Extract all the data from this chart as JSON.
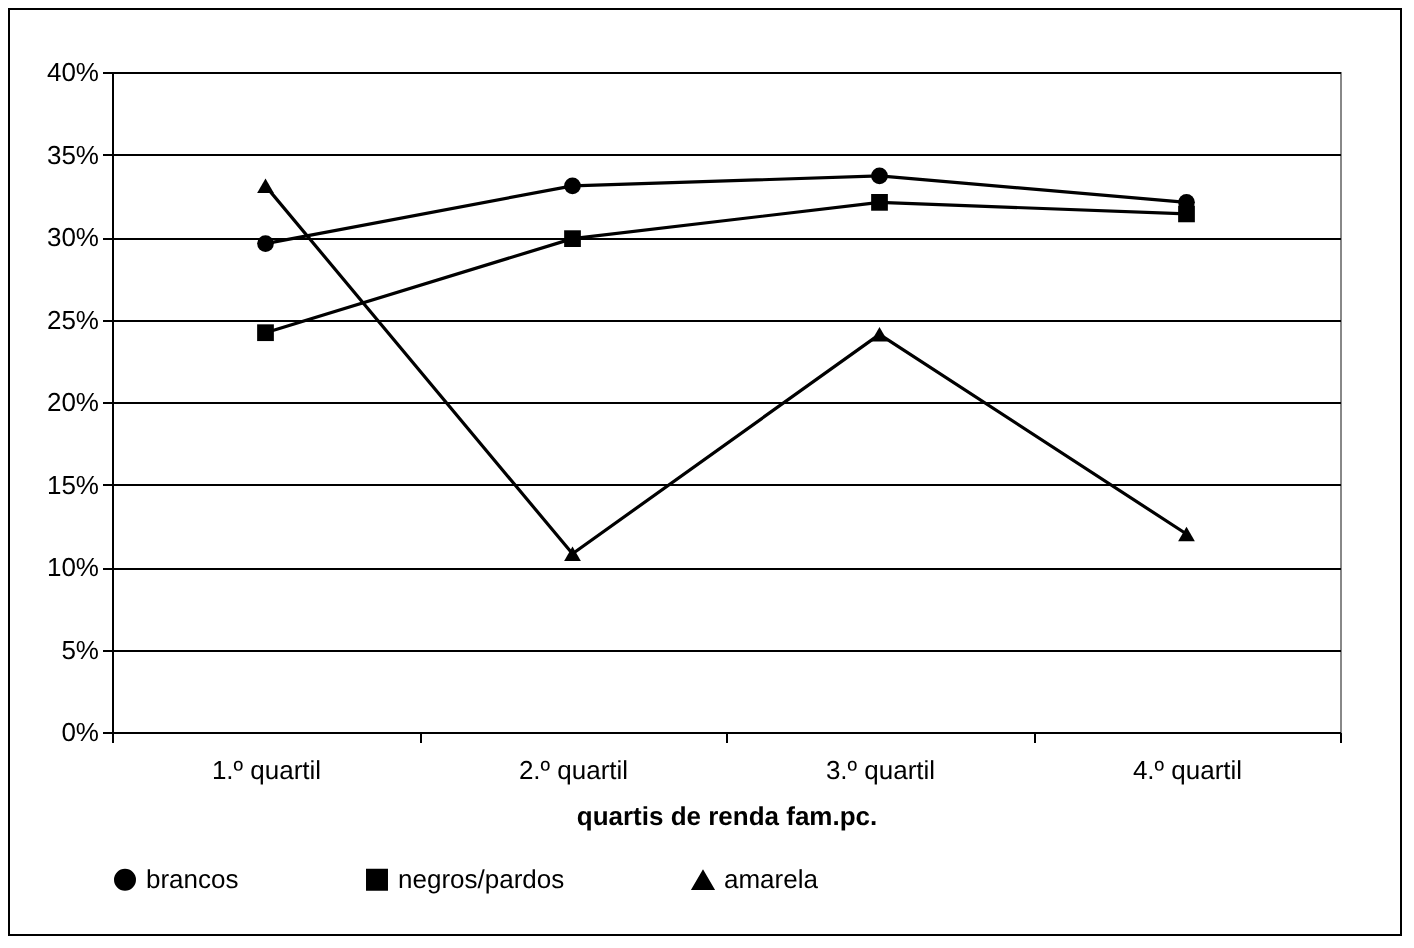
{
  "chart_data": {
    "type": "line",
    "xlabel": "quartis de renda fam.pc.",
    "categories": [
      "1.º quartil",
      "2.º quartil",
      "3.º quartil",
      "4.º quartil"
    ],
    "series": [
      {
        "name": "brancos",
        "color": "#000000",
        "marker": "circle",
        "values": [
          29.6,
          33.1,
          33.7,
          32.1
        ]
      },
      {
        "name": "negros/pardos",
        "color": "#000000",
        "marker": "square",
        "values": [
          24.2,
          29.9,
          32.1,
          31.4
        ]
      },
      {
        "name": "amarela",
        "color": "#000000",
        "marker": "triangle",
        "values": [
          33.1,
          10.8,
          24.1,
          12.0
        ]
      }
    ],
    "ylim": [
      0,
      40
    ],
    "yticks": [
      {
        "value": 0,
        "label": "0%"
      },
      {
        "value": 5,
        "label": "5%"
      },
      {
        "value": 10,
        "label": "10%"
      },
      {
        "value": 15,
        "label": "15%"
      },
      {
        "value": 20,
        "label": "20%"
      },
      {
        "value": 25,
        "label": "25%"
      },
      {
        "value": 30,
        "label": "30%"
      },
      {
        "value": 35,
        "label": "35%"
      },
      {
        "value": 40,
        "label": "40%"
      }
    ],
    "grid": "y",
    "legend": "bottom",
    "line_style": "solid"
  }
}
